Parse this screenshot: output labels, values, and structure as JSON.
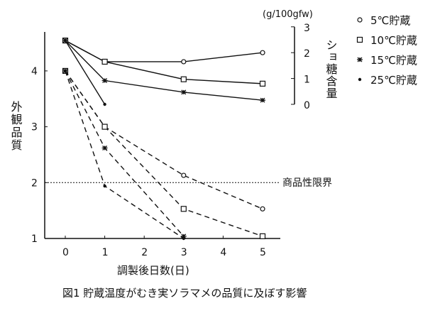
{
  "chart_data": {
    "type": "line",
    "title": "図1 貯蔵温度がむき実ソラマメの品質に及ぼす影響",
    "xlabel": "調製後日数(日)",
    "ylabel": "外観品質",
    "y2label": "ショ糖含量",
    "y2unit": "(g/100gfw)",
    "x_ticks": [
      "0",
      "1",
      "2",
      "3",
      "4",
      "5"
    ],
    "xlim": [
      0,
      5
    ],
    "y_ticks": [
      "1",
      "2",
      "3",
      "4"
    ],
    "ylim": [
      1,
      4
    ],
    "y2_ticks": [
      "0",
      "1",
      "2",
      "3"
    ],
    "y2lim": [
      0,
      3
    ],
    "reference_line": {
      "value": 2,
      "label": "商品性限界"
    },
    "legend": [
      "5℃貯蔵",
      "10℃貯蔵",
      "15℃貯蔵",
      "25℃貯蔵"
    ],
    "legend_position": "top-right",
    "series": [
      {
        "name": "5℃貯蔵",
        "marker": "circle",
        "sucrose": {
          "x": [
            0,
            1,
            3,
            5
          ],
          "y": [
            2.47,
            1.65,
            1.65,
            2.0
          ]
        },
        "appearance": {
          "x": [
            0,
            1,
            3,
            5
          ],
          "y": [
            4.0,
            3.0,
            2.13,
            1.53
          ]
        }
      },
      {
        "name": "10℃貯蔵",
        "marker": "square",
        "sucrose": {
          "x": [
            0,
            1,
            3,
            5
          ],
          "y": [
            2.47,
            1.65,
            0.97,
            0.8
          ]
        },
        "appearance": {
          "x": [
            0,
            1,
            3,
            5
          ],
          "y": [
            4.0,
            3.0,
            1.53,
            1.04
          ]
        }
      },
      {
        "name": "15℃貯蔵",
        "marker": "star",
        "sucrose": {
          "x": [
            0,
            1,
            3,
            5
          ],
          "y": [
            2.47,
            0.92,
            0.47,
            0.16
          ]
        },
        "appearance": {
          "x": [
            0,
            1,
            3
          ],
          "y": [
            4.0,
            2.62,
            1.04
          ]
        }
      },
      {
        "name": "25℃貯蔵",
        "marker": "dot",
        "sucrose": {
          "x": [
            0,
            1
          ],
          "y": [
            2.47,
            0.0
          ]
        },
        "appearance": {
          "x": [
            0,
            1,
            3
          ],
          "y": [
            4.0,
            1.94,
            1.0
          ]
        }
      }
    ]
  }
}
